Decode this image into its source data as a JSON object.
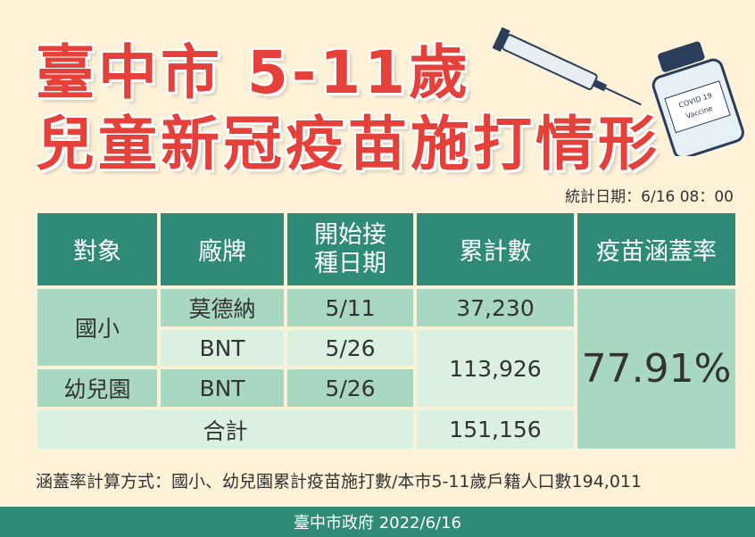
{
  "header": {
    "title_line1": "臺中市 5-11歲",
    "title_line2": "兒童新冠疫苗施打情形",
    "vial_label_1": "COVID 19",
    "vial_label_2": "Vaccine",
    "stats_time": "統計日期：6/16 08：00"
  },
  "table": {
    "headers": [
      "對象",
      "廠牌",
      "開始接種日期",
      "累計數",
      "疫苗涵蓋率"
    ],
    "rows": [
      [
        "國小",
        "莫德納",
        "5/11",
        "37,230"
      ],
      [
        "BNT",
        "5/26",
        "113,926"
      ],
      [
        "幼兒園",
        "BNT",
        "5/26"
      ],
      [
        "合計",
        "151,156"
      ]
    ],
    "coverage": "77.91%"
  },
  "note": "涵蓋率計算方式：國小、幼兒園累計疫苗施打數/本市5-11歲戶籍人口數194,011",
  "footer": "臺中市政府 2022/6/16"
}
